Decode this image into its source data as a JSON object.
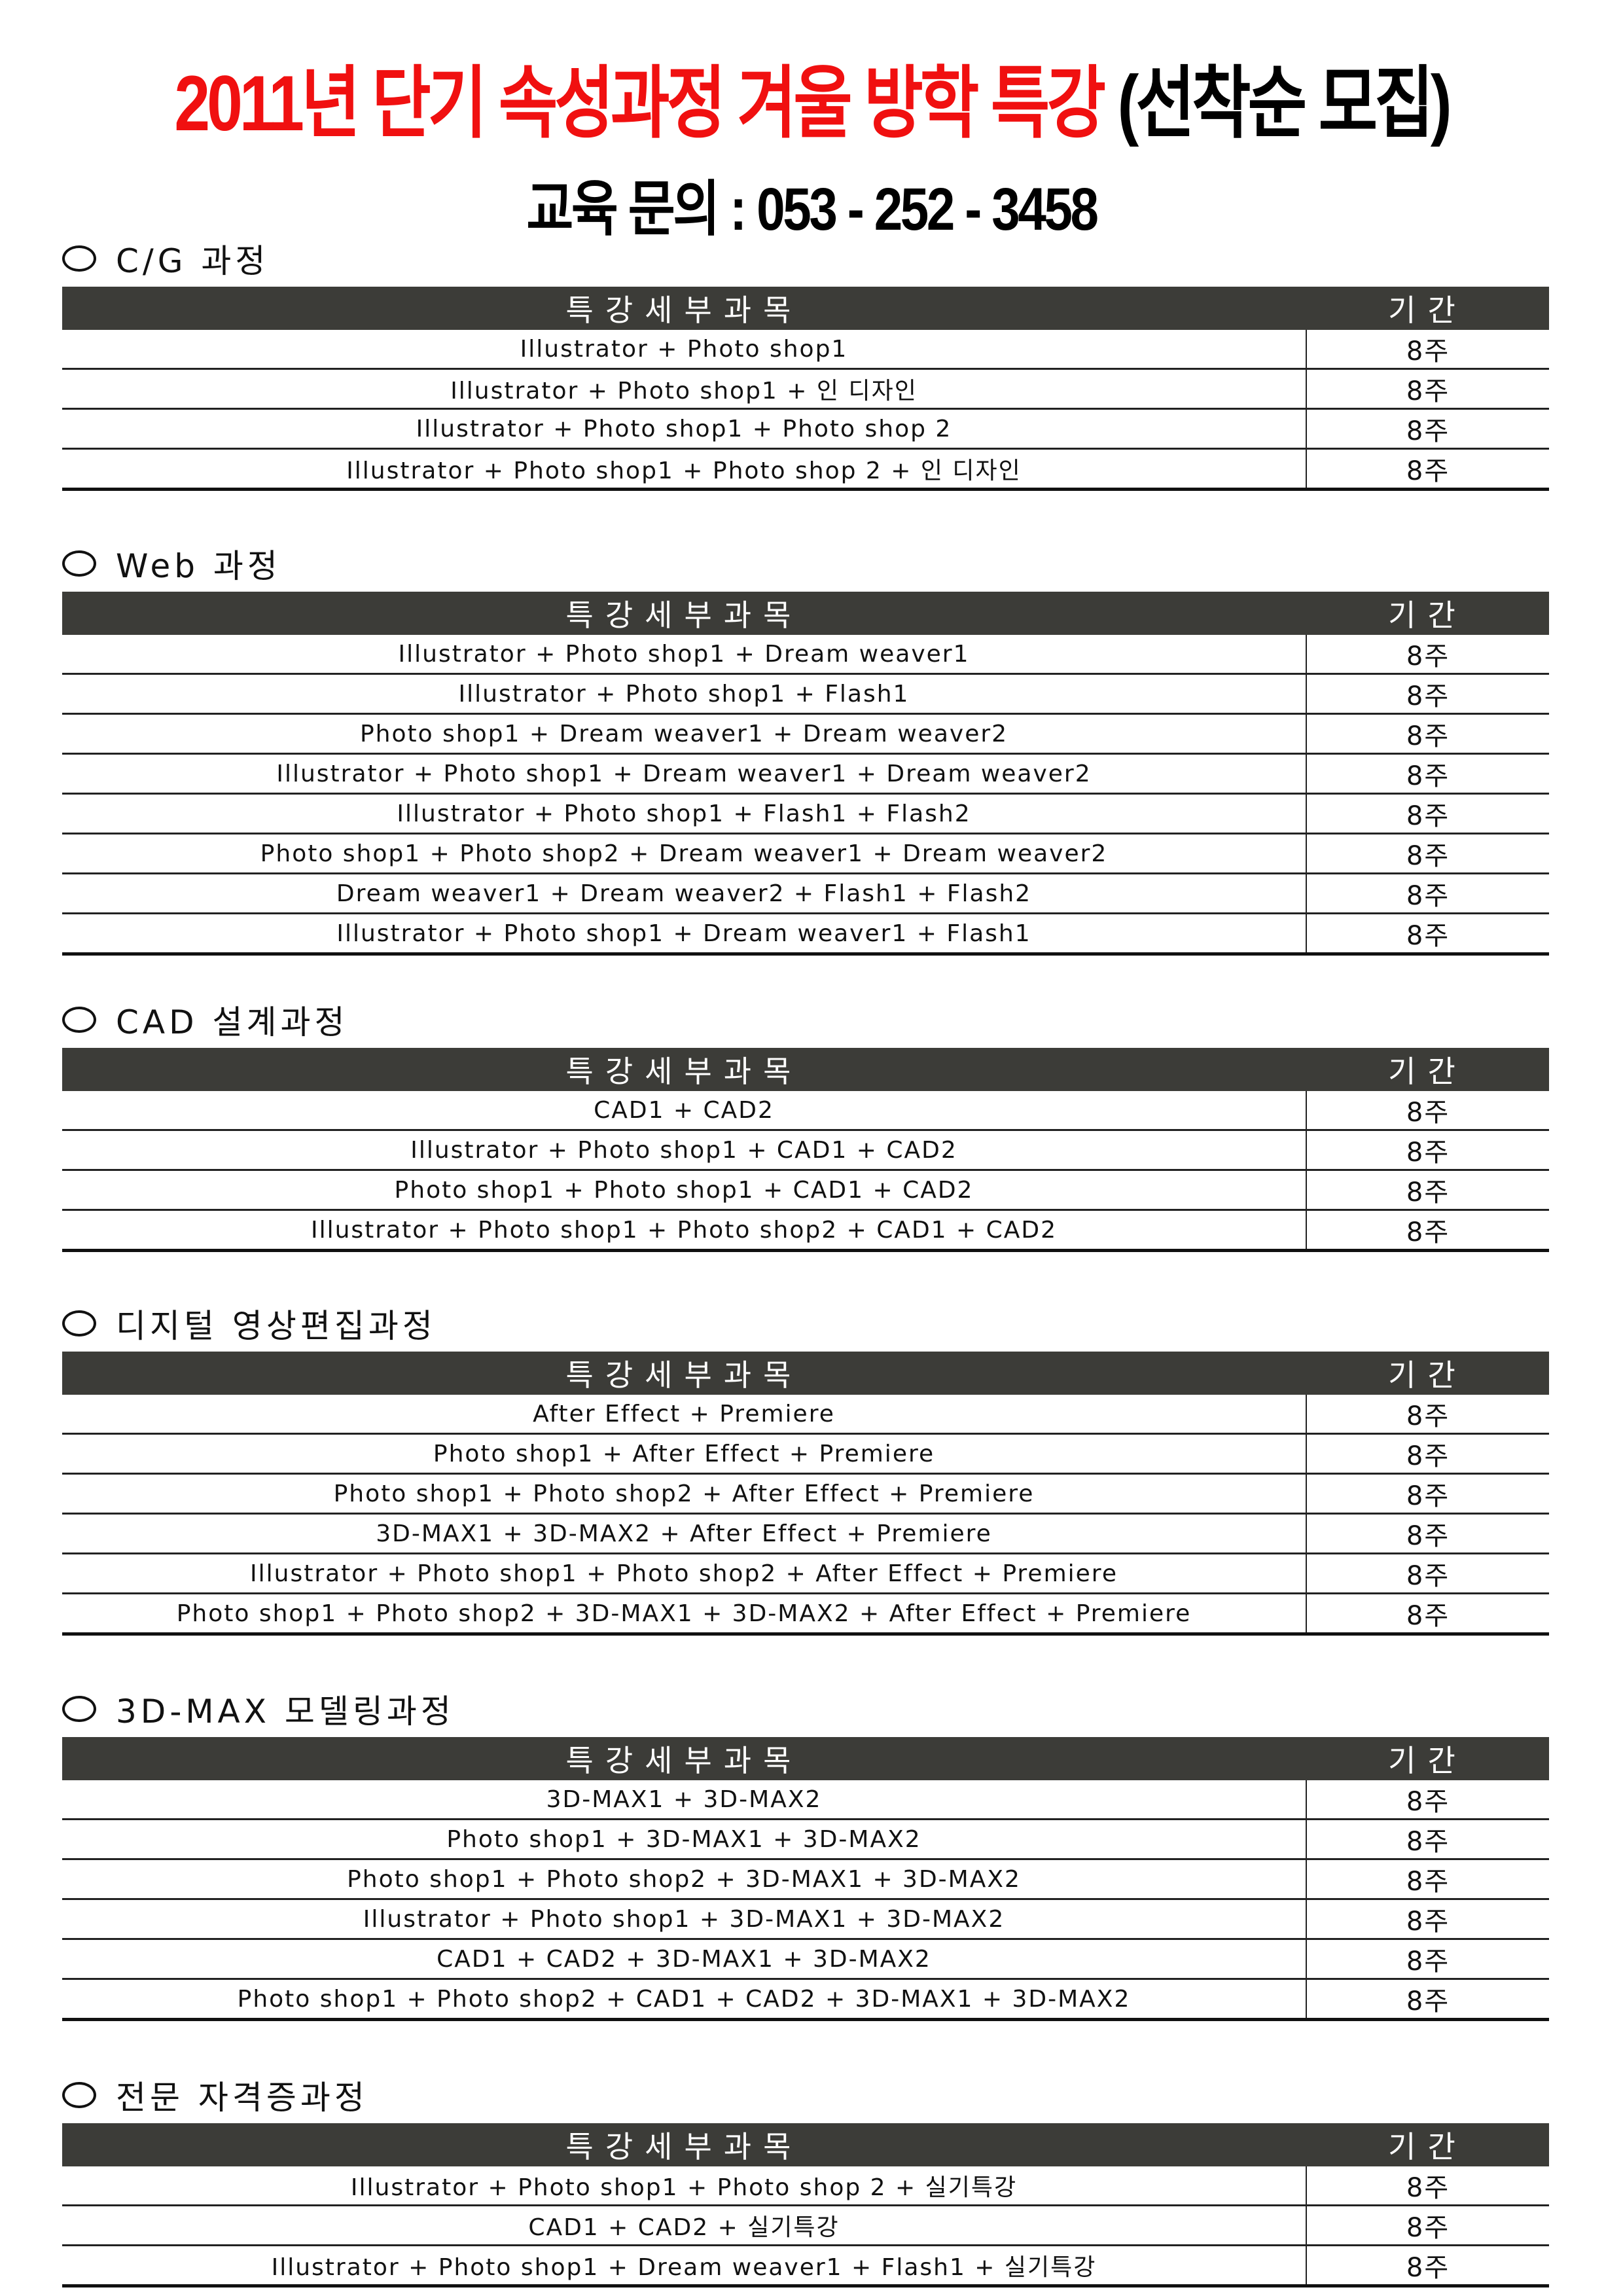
{
  "title": {
    "main": "2011년 단기 속성과정 겨울 방학 특강",
    "sub": "(선착순 모집)"
  },
  "contact": "교육 문의 : 053 - 252 - 3458",
  "colors": {
    "title_red": "#f01010",
    "header_bg": "#3c3c38"
  },
  "table_header": {
    "subject": "특강세부과목",
    "duration": "기간"
  },
  "sections": [
    {
      "name": "C/G 과정",
      "rows": [
        {
          "subject": "Illustrator + Photo shop1",
          "duration": "8주"
        },
        {
          "subject": "Illustrator + Photo shop1 + 인 디자인",
          "duration": "8주"
        },
        {
          "subject": "Illustrator + Photo shop1 + Photo shop 2",
          "duration": "8주"
        },
        {
          "subject": "Illustrator + Photo shop1 + Photo shop 2 + 인 디자인",
          "duration": "8주"
        }
      ]
    },
    {
      "name": "Web 과정",
      "rows": [
        {
          "subject": "Illustrator + Photo shop1 + Dream weaver1",
          "duration": "8주"
        },
        {
          "subject": "Illustrator + Photo shop1 + Flash1",
          "duration": "8주"
        },
        {
          "subject": "Photo shop1 + Dream weaver1 + Dream weaver2",
          "duration": "8주"
        },
        {
          "subject": "Illustrator + Photo shop1 + Dream weaver1 + Dream weaver2",
          "duration": "8주"
        },
        {
          "subject": "Illustrator + Photo shop1 + Flash1 + Flash2",
          "duration": "8주"
        },
        {
          "subject": "Photo shop1 + Photo shop2 + Dream weaver1 + Dream weaver2",
          "duration": "8주"
        },
        {
          "subject": "Dream weaver1 + Dream weaver2 + Flash1 + Flash2",
          "duration": "8주"
        },
        {
          "subject": "Illustrator + Photo shop1 + Dream weaver1 + Flash1",
          "duration": "8주"
        }
      ]
    },
    {
      "name": "CAD 설계과정",
      "rows": [
        {
          "subject": "CAD1 + CAD2",
          "duration": "8주"
        },
        {
          "subject": "Illustrator + Photo shop1 + CAD1 + CAD2",
          "duration": "8주"
        },
        {
          "subject": "Photo shop1 + Photo shop1 + CAD1 + CAD2",
          "duration": "8주"
        },
        {
          "subject": "Illustrator + Photo shop1 + Photo shop2 + CAD1 + CAD2",
          "duration": "8주"
        }
      ]
    },
    {
      "name": "디지털 영상편집과정",
      "rows": [
        {
          "subject": "After Effect + Premiere",
          "duration": "8주"
        },
        {
          "subject": "Photo shop1 + After Effect + Premiere",
          "duration": "8주"
        },
        {
          "subject": "Photo shop1 + Photo shop2 + After Effect + Premiere",
          "duration": "8주"
        },
        {
          "subject": "3D-MAX1 + 3D-MAX2 + After Effect + Premiere",
          "duration": "8주"
        },
        {
          "subject": "Illustrator + Photo shop1 + Photo shop2 + After Effect + Premiere",
          "duration": "8주"
        },
        {
          "subject": "Photo shop1 + Photo shop2 + 3D-MAX1 + 3D-MAX2 + After Effect + Premiere",
          "duration": "8주"
        }
      ]
    },
    {
      "name": "3D-MAX 모델링과정",
      "rows": [
        {
          "subject": "3D-MAX1 + 3D-MAX2",
          "duration": "8주"
        },
        {
          "subject": "Photo shop1 + 3D-MAX1 + 3D-MAX2",
          "duration": "8주"
        },
        {
          "subject": "Photo shop1 + Photo shop2 + 3D-MAX1 + 3D-MAX2",
          "duration": "8주"
        },
        {
          "subject": "Illustrator + Photo shop1 + 3D-MAX1 + 3D-MAX2",
          "duration": "8주"
        },
        {
          "subject": "CAD1 + CAD2 + 3D-MAX1 + 3D-MAX2",
          "duration": "8주"
        },
        {
          "subject": "Photo shop1 + Photo shop2 + CAD1 + CAD2 + 3D-MAX1 + 3D-MAX2",
          "duration": "8주"
        }
      ]
    },
    {
      "name": "전문 자격증과정",
      "rows": [
        {
          "subject": "Illustrator + Photo shop1 + Photo shop 2 + 실기특강",
          "duration": "8주"
        },
        {
          "subject": "CAD1 + CAD2 + 실기특강",
          "duration": "8주"
        },
        {
          "subject": "Illustrator + Photo shop1 + Dream weaver1 + Flash1 + 실기특강",
          "duration": "8주"
        }
      ]
    }
  ]
}
